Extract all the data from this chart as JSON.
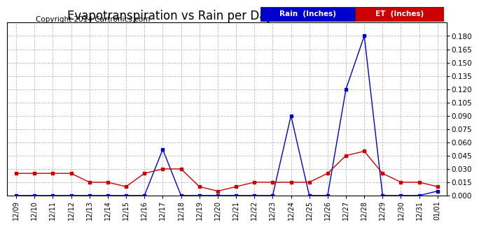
{
  "title": "Evapotranspiration vs Rain per Day (Inches) 20140102",
  "copyright": "Copyright 2014 Cartronics.com",
  "x_labels": [
    "12/09",
    "12/10",
    "12/11",
    "12/12",
    "12/13",
    "12/14",
    "12/15",
    "12/16",
    "12/17",
    "12/18",
    "12/19",
    "12/20",
    "12/21",
    "12/22",
    "12/23",
    "12/24",
    "12/25",
    "12/26",
    "12/27",
    "12/28",
    "12/29",
    "12/30",
    "12/31",
    "01/01"
  ],
  "rain_values": [
    0.0,
    0.0,
    0.0,
    0.0,
    0.0,
    0.0,
    0.0,
    0.0,
    0.052,
    0.0,
    0.0,
    0.0,
    0.0,
    0.0,
    0.0,
    0.09,
    0.0,
    0.0,
    0.12,
    0.18,
    0.0,
    0.0,
    0.0,
    0.005
  ],
  "et_values": [
    0.025,
    0.025,
    0.025,
    0.025,
    0.015,
    0.015,
    0.01,
    0.025,
    0.03,
    0.03,
    0.01,
    0.005,
    0.01,
    0.015,
    0.015,
    0.015,
    0.015,
    0.025,
    0.045,
    0.05,
    0.025,
    0.015,
    0.015,
    0.01
  ],
  "rain_color": "#0000cc",
  "et_color": "#cc0000",
  "background_color": "#ffffff",
  "grid_color": "#bbbbbb",
  "ylim": [
    0.0,
    0.195
  ],
  "yticks": [
    0.0,
    0.015,
    0.03,
    0.045,
    0.06,
    0.075,
    0.09,
    0.105,
    0.12,
    0.135,
    0.15,
    0.165,
    0.18
  ],
  "legend_rain_bg": "#0000cc",
  "legend_et_bg": "#cc0000",
  "legend_rain_text": "Rain  (Inches)",
  "legend_et_text": "ET  (Inches)",
  "title_fontsize": 12,
  "copyright_fontsize": 7.5
}
